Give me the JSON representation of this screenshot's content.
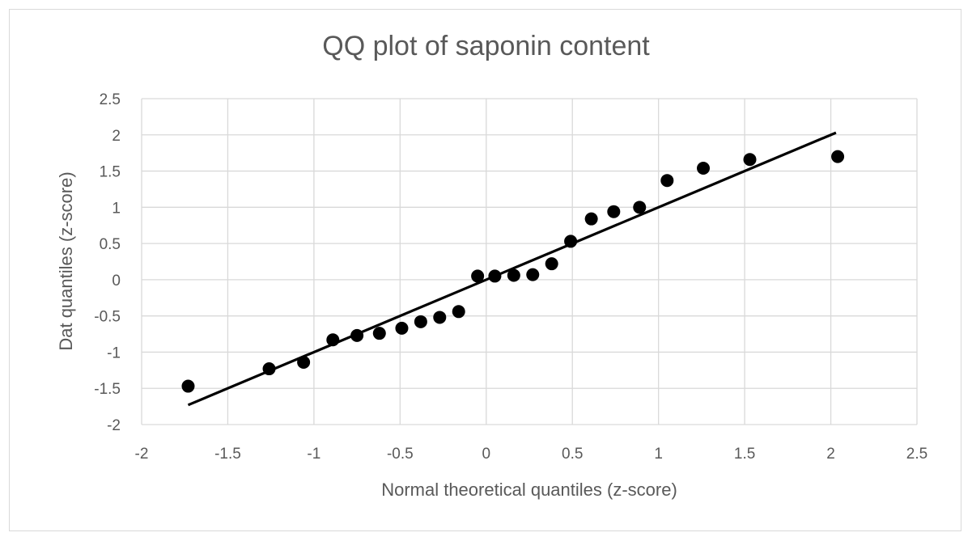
{
  "chart_data": {
    "type": "scatter",
    "title": "QQ plot of saponin content",
    "xlabel": "Normal theoretical quantiles (z-score)",
    "ylabel": "Dat quantiles (z-score)",
    "xlim": [
      -2,
      2.5
    ],
    "ylim": [
      -2,
      2.5
    ],
    "xticks": [
      -2,
      -1.5,
      -1,
      -0.5,
      0,
      0.5,
      1,
      1.5,
      2,
      2.5
    ],
    "yticks": [
      -2,
      -1.5,
      -1,
      -0.5,
      0,
      0.5,
      1,
      1.5,
      2,
      2.5
    ],
    "grid": true,
    "legend": "none",
    "marker_color": "#000000",
    "line_color": "#000000",
    "grid_color": "#d9d9d9",
    "points": [
      {
        "x": -1.73,
        "y": -1.47
      },
      {
        "x": -1.26,
        "y": -1.23
      },
      {
        "x": -1.06,
        "y": -1.14
      },
      {
        "x": -0.89,
        "y": -0.83
      },
      {
        "x": -0.75,
        "y": -0.77
      },
      {
        "x": -0.62,
        "y": -0.74
      },
      {
        "x": -0.49,
        "y": -0.67
      },
      {
        "x": -0.38,
        "y": -0.58
      },
      {
        "x": -0.27,
        "y": -0.52
      },
      {
        "x": -0.16,
        "y": -0.44
      },
      {
        "x": -0.05,
        "y": 0.05
      },
      {
        "x": 0.05,
        "y": 0.05
      },
      {
        "x": 0.16,
        "y": 0.06
      },
      {
        "x": 0.27,
        "y": 0.07
      },
      {
        "x": 0.38,
        "y": 0.22
      },
      {
        "x": 0.49,
        "y": 0.53
      },
      {
        "x": 0.61,
        "y": 0.84
      },
      {
        "x": 0.74,
        "y": 0.94
      },
      {
        "x": 0.89,
        "y": 1.0
      },
      {
        "x": 1.05,
        "y": 1.37
      },
      {
        "x": 1.26,
        "y": 1.54
      },
      {
        "x": 1.53,
        "y": 1.66
      },
      {
        "x": 2.04,
        "y": 1.7
      }
    ],
    "reference_line": {
      "x": [
        -1.73,
        2.03
      ],
      "y": [
        -1.73,
        2.03
      ]
    }
  }
}
